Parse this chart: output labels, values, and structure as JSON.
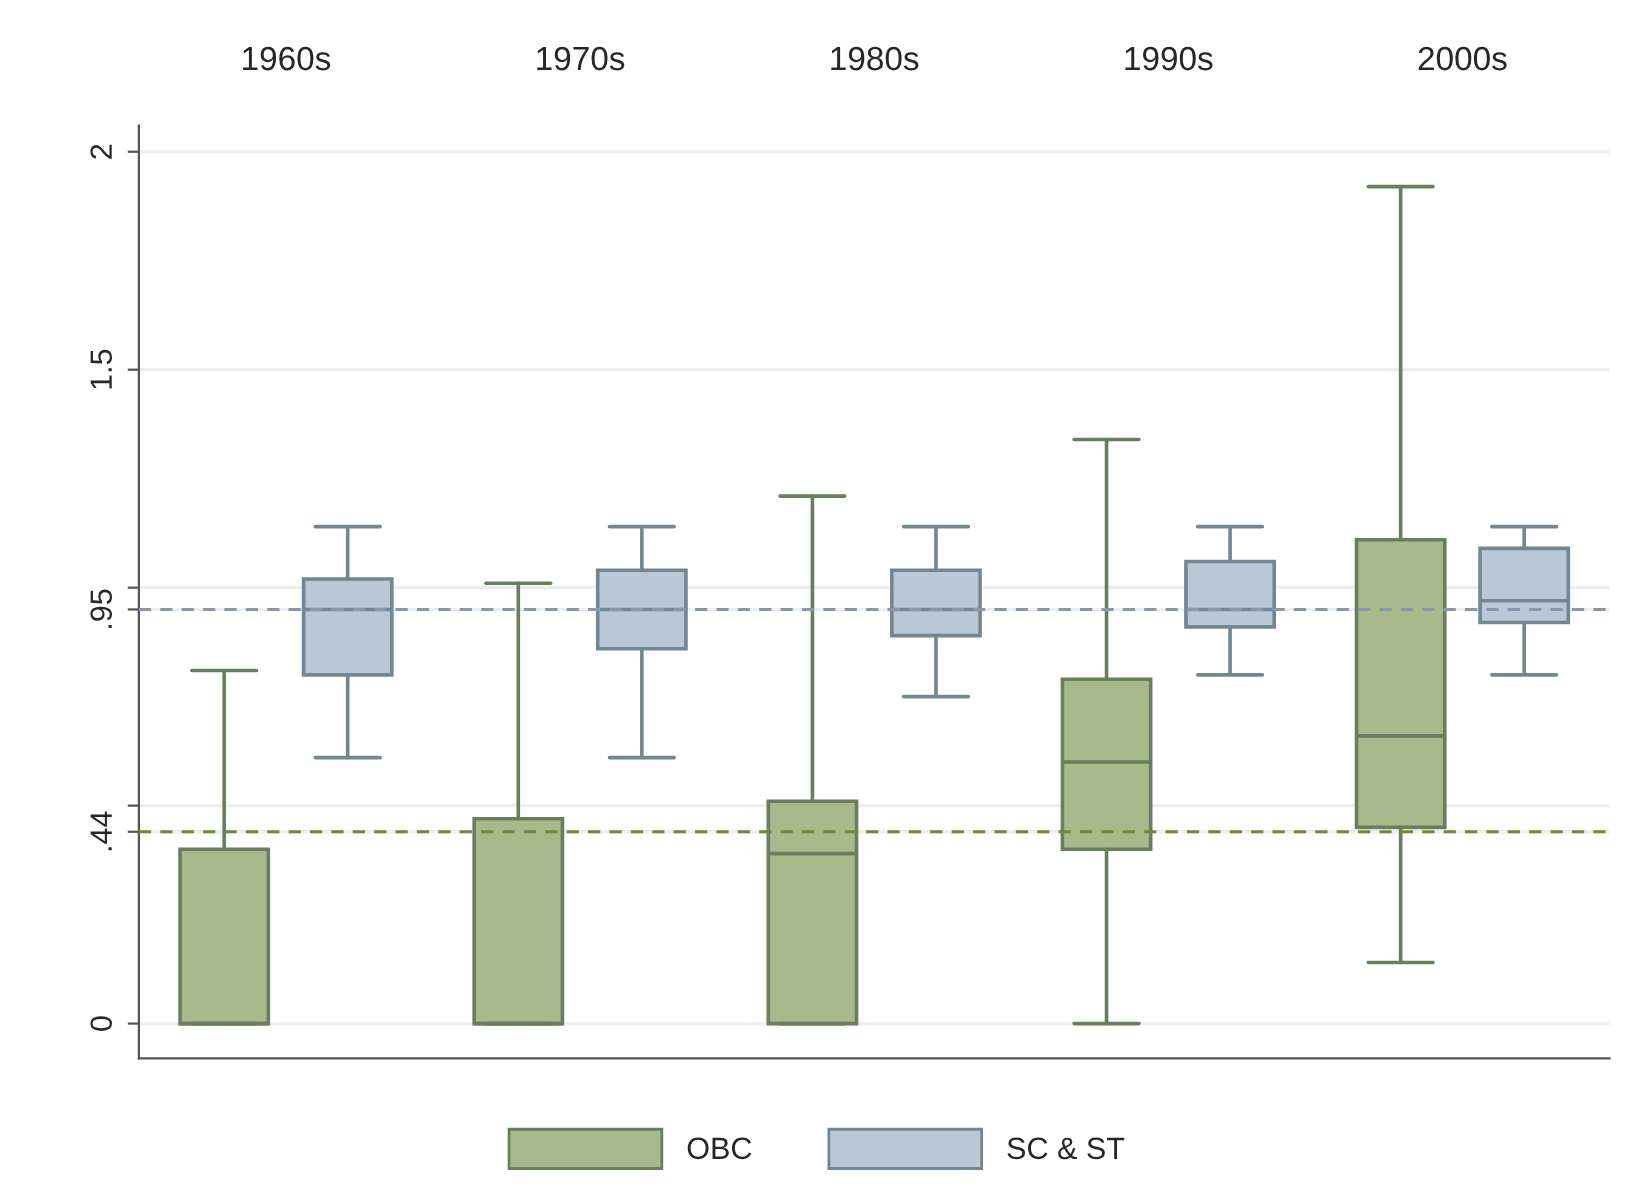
{
  "chart_data": {
    "type": "box",
    "categories": [
      "1960s",
      "1970s",
      "1980s",
      "1990s",
      "2000s"
    ],
    "ylim": [
      -0.08,
      2.06
    ],
    "yticks": [
      0,
      {
        "value": 0.44,
        "label": ".44"
      },
      {
        "value": 0.5,
        "label": null
      },
      {
        "value": 0.95,
        "label": ".95"
      },
      {
        "value": 1,
        "label": null
      },
      1.5,
      2
    ],
    "grid": "y",
    "legend": "bottom",
    "ref_lines": [
      {
        "axis": "y",
        "value": 0.44,
        "color": "#6b8a3a",
        "line_style": "dashed"
      },
      {
        "axis": "y",
        "value": 0.95,
        "color": "#8797ad",
        "line_style": "dashed"
      }
    ],
    "series": [
      {
        "name": "OBC",
        "color": "#a8b98c",
        "boxes": [
          {
            "low": 0,
            "q1": 0,
            "median": 0,
            "q3": 0.4,
            "high": 0.81
          },
          {
            "low": 0,
            "q1": 0,
            "median": 0,
            "q3": 0.47,
            "high": 1.01
          },
          {
            "low": 0,
            "q1": 0,
            "median": 0.39,
            "q3": 0.51,
            "high": 1.21
          },
          {
            "low": 0,
            "q1": 0.4,
            "median": 0.6,
            "q3": 0.79,
            "high": 1.34
          },
          {
            "low": 0.14,
            "q1": 0.45,
            "median": 0.66,
            "q3": 1.11,
            "high": 1.92
          }
        ]
      },
      {
        "name": "SC & ST",
        "color": "#b9c7d6",
        "boxes": [
          {
            "low": 0.61,
            "q1": 0.8,
            "median": 0.95,
            "q3": 1.02,
            "high": 1.14
          },
          {
            "low": 0.61,
            "q1": 0.86,
            "median": 0.95,
            "q3": 1.04,
            "high": 1.14
          },
          {
            "low": 0.75,
            "q1": 0.89,
            "median": 0.95,
            "q3": 1.04,
            "high": 1.14
          },
          {
            "low": 0.8,
            "q1": 0.91,
            "median": 0.95,
            "q3": 1.06,
            "high": 1.14
          },
          {
            "low": 0.8,
            "q1": 0.92,
            "median": 0.97,
            "q3": 1.09,
            "high": 1.14
          }
        ]
      }
    ]
  }
}
